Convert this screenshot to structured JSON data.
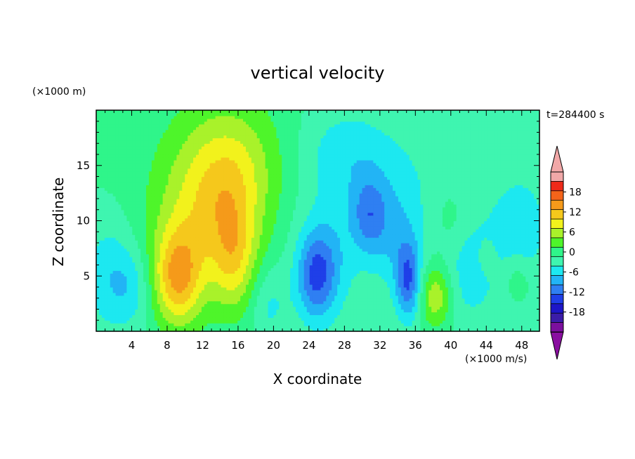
{
  "chart_data": {
    "type": "heatmap",
    "title": "vertical velocity",
    "xlabel": "X coordinate",
    "ylabel": "Z coordinate",
    "x_unit": "(×1000 m/s)",
    "y_unit": "(×1000 m)",
    "time_label": "t=284400 s",
    "xlim": [
      0,
      50
    ],
    "ylim": [
      0,
      20
    ],
    "x_ticks": [
      4,
      8,
      12,
      16,
      20,
      24,
      28,
      32,
      36,
      40,
      44,
      48
    ],
    "y_ticks": [
      5,
      10,
      15
    ],
    "colorbar": {
      "ticks": [
        18,
        12,
        6,
        0,
        -6,
        -12,
        -18
      ],
      "levels": [
        -21,
        -18,
        -15,
        -12,
        -9,
        -6,
        -3,
        0,
        3,
        6,
        9,
        12,
        15,
        18,
        21
      ],
      "colors": [
        "#7b0f9e",
        "#3b1ca8",
        "#1d16c8",
        "#1f3fe8",
        "#2f7ff2",
        "#22b4f5",
        "#1de8f0",
        "#3ff5b0",
        "#2ff58a",
        "#4ef52a",
        "#a9f22a",
        "#f2f21c",
        "#f5c81c",
        "#f59a1a",
        "#f5641a",
        "#ee2a1a",
        "#f0a8a8"
      ],
      "under_color": "#8a0fa0",
      "over_color": "#f2a8a8"
    },
    "field_features": [
      {
        "x": 9.2,
        "z": 4.8,
        "sx": 1.9,
        "sz": 3.0,
        "w": 12.5
      },
      {
        "x": 9.8,
        "z": 8.5,
        "sx": 3.0,
        "sz": 5.0,
        "w": 4.0
      },
      {
        "x": 15.5,
        "z": 6.5,
        "sx": 1.8,
        "sz": 3.5,
        "w": 8.5
      },
      {
        "x": 14.5,
        "z": 12.5,
        "sx": 3.3,
        "sz": 4.5,
        "w": 8.0
      },
      {
        "x": 12.5,
        "z": 13.5,
        "sx": 5.5,
        "sz": 6.5,
        "w": 3.5
      },
      {
        "x": 17.0,
        "z": 16.0,
        "sx": 4.0,
        "sz": 4.0,
        "w": 2.5
      },
      {
        "x": 38.3,
        "z": 3.2,
        "sx": 1.3,
        "sz": 2.0,
        "w": 8.5
      },
      {
        "x": 40.0,
        "z": 10.5,
        "sx": 1.2,
        "sz": 2.0,
        "w": 2.0
      },
      {
        "x": 47.5,
        "z": 4.8,
        "sx": 1.2,
        "sz": 1.5,
        "w": 3.5
      },
      {
        "x": 44.0,
        "z": 6.5,
        "sx": 0.8,
        "sz": 1.2,
        "w": 2.5
      },
      {
        "x": 24.8,
        "z": 5.0,
        "sx": 1.6,
        "sz": 2.8,
        "w": -11.0
      },
      {
        "x": 26.5,
        "z": 7.0,
        "sx": 2.5,
        "sz": 4.0,
        "w": -4.0
      },
      {
        "x": 30.8,
        "z": 10.5,
        "sx": 1.4,
        "sz": 2.5,
        "w": -8.0
      },
      {
        "x": 35.2,
        "z": 4.5,
        "sx": 1.0,
        "sz": 2.5,
        "w": -11.0
      },
      {
        "x": 34.0,
        "z": 8.5,
        "sx": 2.0,
        "sz": 3.5,
        "w": -5.0
      },
      {
        "x": 31.0,
        "z": 14.5,
        "sx": 5.0,
        "sz": 4.0,
        "w": -3.5
      },
      {
        "x": 27.5,
        "z": 16.5,
        "sx": 3.0,
        "sz": 2.5,
        "w": -2.5
      },
      {
        "x": 1.5,
        "z": 5.0,
        "sx": 2.0,
        "sz": 3.5,
        "w": -5.5
      },
      {
        "x": 4.2,
        "z": 4.0,
        "sx": 1.5,
        "sz": 2.5,
        "w": -4.0
      },
      {
        "x": 19.5,
        "z": 2.5,
        "sx": 1.5,
        "sz": 2.5,
        "w": -4.0
      },
      {
        "x": 42.0,
        "z": 5.0,
        "sx": 2.0,
        "sz": 3.0,
        "w": -4.0
      },
      {
        "x": 46.0,
        "z": 8.0,
        "sx": 3.0,
        "sz": 4.0,
        "w": -2.5
      },
      {
        "x": 48.5,
        "z": 9.5,
        "sx": 2.0,
        "sz": 3.5,
        "w": -3.0
      },
      {
        "x": 43.0,
        "z": 14.0,
        "sx": 4.0,
        "sz": 3.0,
        "w": -1.0
      }
    ]
  }
}
